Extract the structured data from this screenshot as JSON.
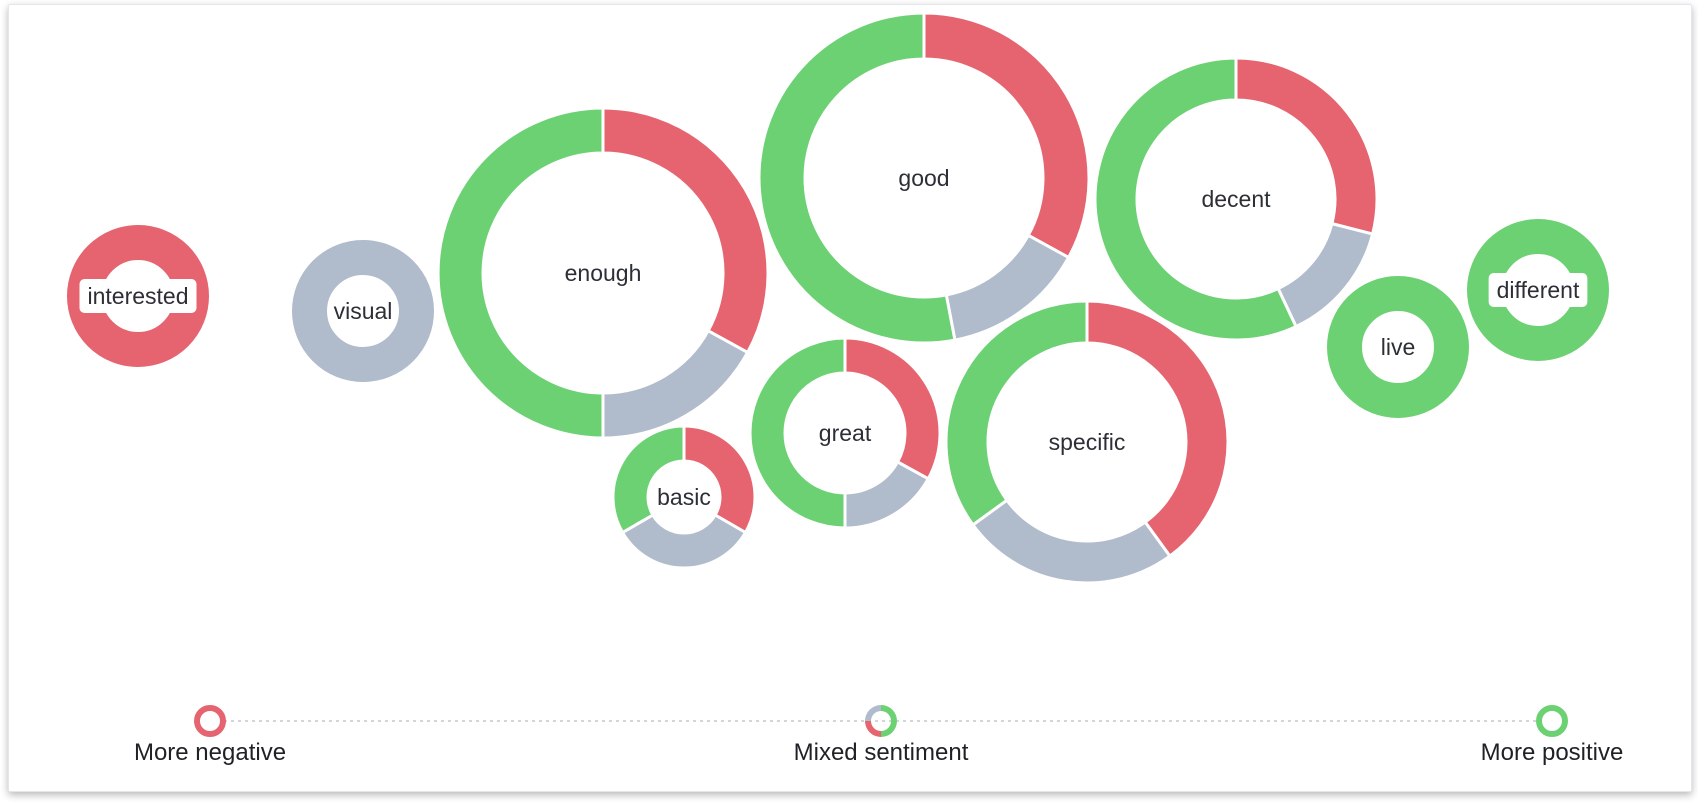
{
  "colors": {
    "negative": "#e5646f",
    "neutral": "#b0bbcb",
    "positive": "#6cd173",
    "text": "#2c2f36"
  },
  "chart_data": {
    "type": "donut-bubble",
    "segment_order": [
      "negative",
      "neutral",
      "positive"
    ],
    "bubbles": [
      {
        "word": "interested",
        "negative": 1.0,
        "neutral": 0.0,
        "positive": 0.0
      },
      {
        "word": "visual",
        "negative": 0.0,
        "neutral": 1.0,
        "positive": 0.0
      },
      {
        "word": "enough",
        "negative": 0.33,
        "neutral": 0.17,
        "positive": 0.5
      },
      {
        "word": "basic",
        "negative": 0.33,
        "neutral": 0.33,
        "positive": 0.33
      },
      {
        "word": "good",
        "negative": 0.33,
        "neutral": 0.14,
        "positive": 0.53
      },
      {
        "word": "great",
        "negative": 0.33,
        "neutral": 0.17,
        "positive": 0.5
      },
      {
        "word": "specific",
        "negative": 0.4,
        "neutral": 0.25,
        "positive": 0.35
      },
      {
        "word": "decent",
        "negative": 0.29,
        "neutral": 0.14,
        "positive": 0.57
      },
      {
        "word": "live",
        "negative": 0.0,
        "neutral": 0.0,
        "positive": 1.0
      },
      {
        "word": "different",
        "negative": 0.0,
        "neutral": 0.0,
        "positive": 1.0
      }
    ],
    "legend": {
      "left": "More negative",
      "middle": "Mixed sentiment",
      "right": "More positive"
    }
  }
}
